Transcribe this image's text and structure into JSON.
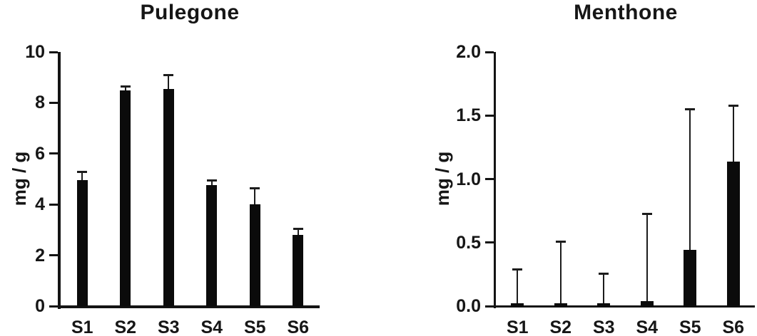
{
  "figure": {
    "background_color": "#ffffff",
    "text_color": "#161616",
    "panel_count": 2
  },
  "chart_data": [
    {
      "id": "pulegone",
      "type": "bar",
      "title": "Pulegone",
      "ylabel": "mg / g",
      "xlabel": "",
      "categories": [
        "S1",
        "S2",
        "S3",
        "S4",
        "S5",
        "S6"
      ],
      "values": [
        4.95,
        8.5,
        8.55,
        4.75,
        4.0,
        2.8
      ],
      "error_top": [
        5.3,
        8.65,
        9.1,
        4.95,
        4.65,
        3.05
      ],
      "error_type": "upper-only",
      "ylim": [
        0,
        10
      ],
      "yticks": [
        0,
        2,
        4,
        6,
        8,
        10
      ],
      "ytick_labels": [
        "0",
        "2",
        "4",
        "6",
        "8",
        "10"
      ],
      "bar_color": "#0b0b0b",
      "error_color": "#1c1c1c",
      "grid": false,
      "legend": null
    },
    {
      "id": "menthone",
      "type": "bar",
      "title": "Menthone",
      "ylabel": "mg / g",
      "xlabel": "",
      "categories": [
        "S1",
        "S2",
        "S3",
        "S4",
        "S5",
        "S6"
      ],
      "values": [
        0.02,
        0.02,
        0.02,
        0.04,
        0.44,
        1.14
      ],
      "error_top": [
        0.29,
        0.51,
        0.26,
        0.73,
        1.55,
        1.58
      ],
      "error_type": "upper-only",
      "ylim": [
        0,
        2.0
      ],
      "yticks": [
        0,
        0.5,
        1.0,
        1.5,
        2.0
      ],
      "ytick_labels": [
        "0.0",
        "0.5",
        "1.0",
        "1.5",
        "2.0"
      ],
      "bar_color": "#0b0b0b",
      "error_color": "#1c1c1c",
      "grid": false,
      "legend": null
    }
  ]
}
